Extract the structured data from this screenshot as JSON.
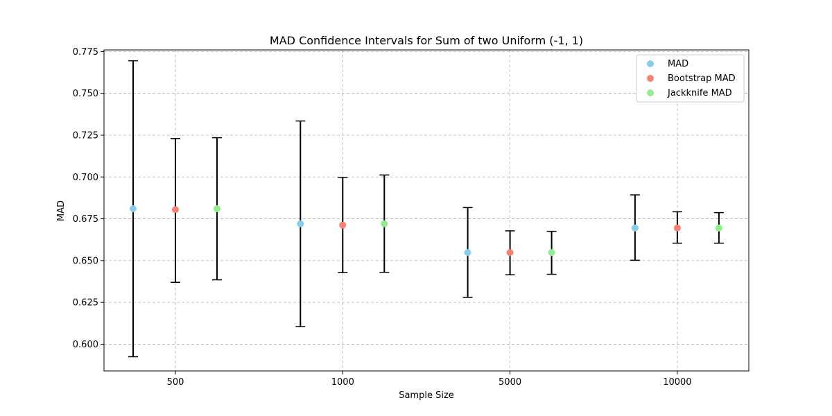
{
  "chart_data": {
    "type": "scatter",
    "title": "MAD Confidence Intervals for Sum of two Uniform (-1, 1)",
    "xlabel": "Sample Size",
    "ylabel": "MAD",
    "categories": [
      "500",
      "1000",
      "5000",
      "10000"
    ],
    "ylim": [
      0.584,
      0.776
    ],
    "yticks": [
      "0.600",
      "0.625",
      "0.650",
      "0.675",
      "0.700",
      "0.725",
      "0.750",
      "0.775"
    ],
    "grid": true,
    "legend_position": "top-right",
    "series": [
      {
        "name": "MAD",
        "color": "#87ceeb",
        "points": [
          {
            "category": "500",
            "value": 0.681,
            "lower": 0.5925,
            "upper": 0.7695
          },
          {
            "category": "1000",
            "value": 0.672,
            "lower": 0.6105,
            "upper": 0.7335
          },
          {
            "category": "5000",
            "value": 0.6548,
            "lower": 0.628,
            "upper": 0.6817
          },
          {
            "category": "10000",
            "value": 0.6695,
            "lower": 0.6502,
            "upper": 0.6893
          }
        ]
      },
      {
        "name": "Bootstrap MAD",
        "color": "#fa8072",
        "points": [
          {
            "category": "500",
            "value": 0.6805,
            "lower": 0.637,
            "upper": 0.723
          },
          {
            "category": "1000",
            "value": 0.6712,
            "lower": 0.6428,
            "upper": 0.6998
          },
          {
            "category": "5000",
            "value": 0.6548,
            "lower": 0.6415,
            "upper": 0.6678
          },
          {
            "category": "10000",
            "value": 0.6695,
            "lower": 0.6604,
            "upper": 0.6792
          }
        ]
      },
      {
        "name": "Jackknife MAD",
        "color": "#90ee90",
        "points": [
          {
            "category": "500",
            "value": 0.681,
            "lower": 0.6385,
            "upper": 0.7235
          },
          {
            "category": "1000",
            "value": 0.672,
            "lower": 0.643,
            "upper": 0.7012
          },
          {
            "category": "5000",
            "value": 0.6548,
            "lower": 0.6418,
            "upper": 0.6675
          },
          {
            "category": "10000",
            "value": 0.6695,
            "lower": 0.6604,
            "upper": 0.6787
          }
        ]
      }
    ]
  }
}
